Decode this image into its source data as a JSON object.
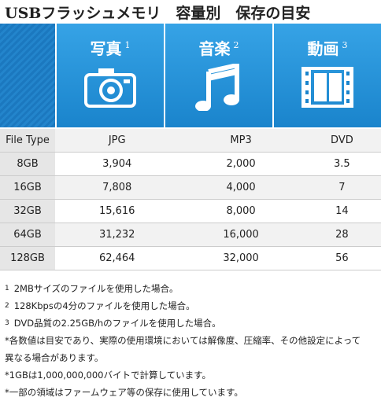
{
  "header": {
    "title": "USBフラッシュメモリ　容量別　保存の目安"
  },
  "table": {
    "columns": [
      {
        "label": "写真",
        "note": "1"
      },
      {
        "label": "音楽",
        "note": "2"
      },
      {
        "label": "動画",
        "note": "3"
      }
    ],
    "rows": [
      [
        "File Type",
        "JPG",
        "MP3",
        "DVD"
      ],
      [
        "8GB",
        "3,904",
        "2,000",
        "3.5"
      ],
      [
        "16GB",
        "7,808",
        "4,000",
        "7"
      ],
      [
        "32GB",
        "15,616",
        "8,000",
        "14"
      ],
      [
        "64GB",
        "31,232",
        "16,000",
        "28"
      ],
      [
        "128GB",
        "62,464",
        "32,000",
        "56"
      ]
    ]
  },
  "notes": [
    {
      "marker": "1",
      "text": "2MBサイズのファイルを使用した場合。"
    },
    {
      "marker": "2",
      "text": "128Kbpsの4分のファイルを使用した場合。"
    },
    {
      "marker": "3",
      "text": "DVD品質の2.25GB/hのファイルを使用した場合。"
    }
  ],
  "remarks": [
    "*各数値は目安であり、実際の使用環境においては解像度、圧縮率、その他設定によって",
    "異なる場合があります。",
    "*1GBは1,000,000,000バイトで計算しています。",
    "*一部の領域はファームウェア等の保存に使用しています。"
  ]
}
